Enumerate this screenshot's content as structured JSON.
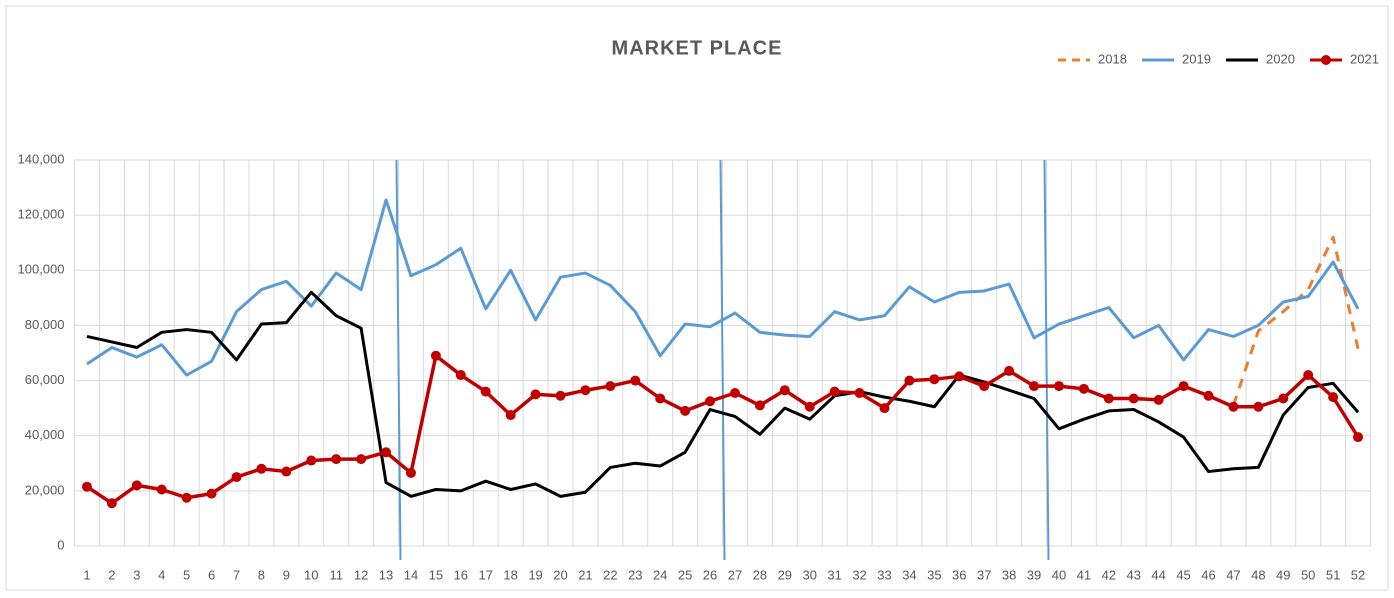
{
  "chart_data": {
    "type": "line",
    "title": "MARKET PLACE",
    "categories": [
      "1",
      "2",
      "3",
      "4",
      "5",
      "6",
      "7",
      "8",
      "9",
      "10",
      "11",
      "12",
      "13",
      "14",
      "15",
      "16",
      "17",
      "18",
      "19",
      "20",
      "21",
      "22",
      "23",
      "24",
      "25",
      "26",
      "27",
      "28",
      "29",
      "30",
      "31",
      "32",
      "33",
      "34",
      "35",
      "36",
      "37",
      "38",
      "39",
      "40",
      "41",
      "42",
      "43",
      "44",
      "45",
      "46",
      "47",
      "48",
      "49",
      "50",
      "51",
      "52"
    ],
    "series": [
      {
        "name": "2018",
        "color": "#ed7d31",
        "dashed": true,
        "markers": false,
        "values": [
          null,
          null,
          null,
          null,
          null,
          null,
          null,
          null,
          null,
          null,
          null,
          null,
          null,
          null,
          null,
          null,
          null,
          null,
          null,
          null,
          null,
          null,
          null,
          null,
          null,
          null,
          null,
          null,
          null,
          null,
          null,
          null,
          null,
          null,
          null,
          null,
          null,
          null,
          null,
          null,
          null,
          null,
          null,
          null,
          null,
          null,
          51000,
          78000,
          85000,
          93000,
          112000,
          71500
        ]
      },
      {
        "name": "2019",
        "color": "#5b9bd5",
        "dashed": false,
        "markers": false,
        "values": [
          66000,
          72000,
          68500,
          73000,
          62000,
          67000,
          85000,
          93000,
          96000,
          87000,
          99000,
          93000,
          125500,
          98000,
          102000,
          108000,
          86000,
          100000,
          82000,
          97500,
          99000,
          94500,
          85000,
          69000,
          80500,
          79500,
          84500,
          77500,
          76500,
          76000,
          85000,
          82000,
          83500,
          94000,
          88500,
          92000,
          92500,
          95000,
          75500,
          80500,
          83500,
          86500,
          75500,
          80000,
          67500,
          78500,
          76000,
          80000,
          88500,
          90500,
          103000,
          86000
        ]
      },
      {
        "name": "2020",
        "color": "#000000",
        "dashed": false,
        "markers": false,
        "values": [
          76000,
          74000,
          72000,
          77500,
          78500,
          77500,
          67500,
          80500,
          81000,
          92000,
          83500,
          79000,
          23000,
          18000,
          20500,
          20000,
          23500,
          20500,
          22500,
          18000,
          19500,
          28500,
          30000,
          29000,
          34000,
          49500,
          47000,
          40500,
          50000,
          46000,
          54500,
          56000,
          54000,
          52500,
          50500,
          62000,
          59500,
          56500,
          53500,
          42500,
          46000,
          49000,
          49500,
          45000,
          39500,
          27000,
          28000,
          28500,
          47500,
          57500,
          59000,
          48500
        ]
      },
      {
        "name": "2021",
        "color": "#c00000",
        "dashed": false,
        "markers": true,
        "values": [
          21500,
          15500,
          22000,
          20500,
          17500,
          19000,
          25000,
          28000,
          27000,
          31000,
          31500,
          31500,
          34000,
          26500,
          69000,
          62000,
          56000,
          47500,
          55000,
          54500,
          56500,
          58000,
          60000,
          53500,
          49000,
          52500,
          55500,
          51000,
          56500,
          50500,
          56000,
          55500,
          50000,
          60000,
          60500,
          61500,
          58000,
          63500,
          58000,
          58000,
          57000,
          53500,
          53500,
          53000,
          58000,
          54500,
          50500,
          50500,
          53500,
          62000,
          54000,
          39500
        ]
      }
    ],
    "ylim": [
      0,
      140000
    ],
    "yticks": [
      0,
      {
        "value": 20000,
        "label": "20,000"
      },
      {
        "value": 40000,
        "label": "40,000"
      },
      {
        "value": 60000,
        "label": "60,000"
      },
      {
        "value": 80000,
        "label": "80,000"
      },
      {
        "value": 100000,
        "label": "100,000"
      },
      {
        "value": 120000,
        "label": "120,000"
      },
      {
        "value": 140000,
        "label": "140,000"
      }
    ],
    "grid": true,
    "legend": "top-right"
  }
}
